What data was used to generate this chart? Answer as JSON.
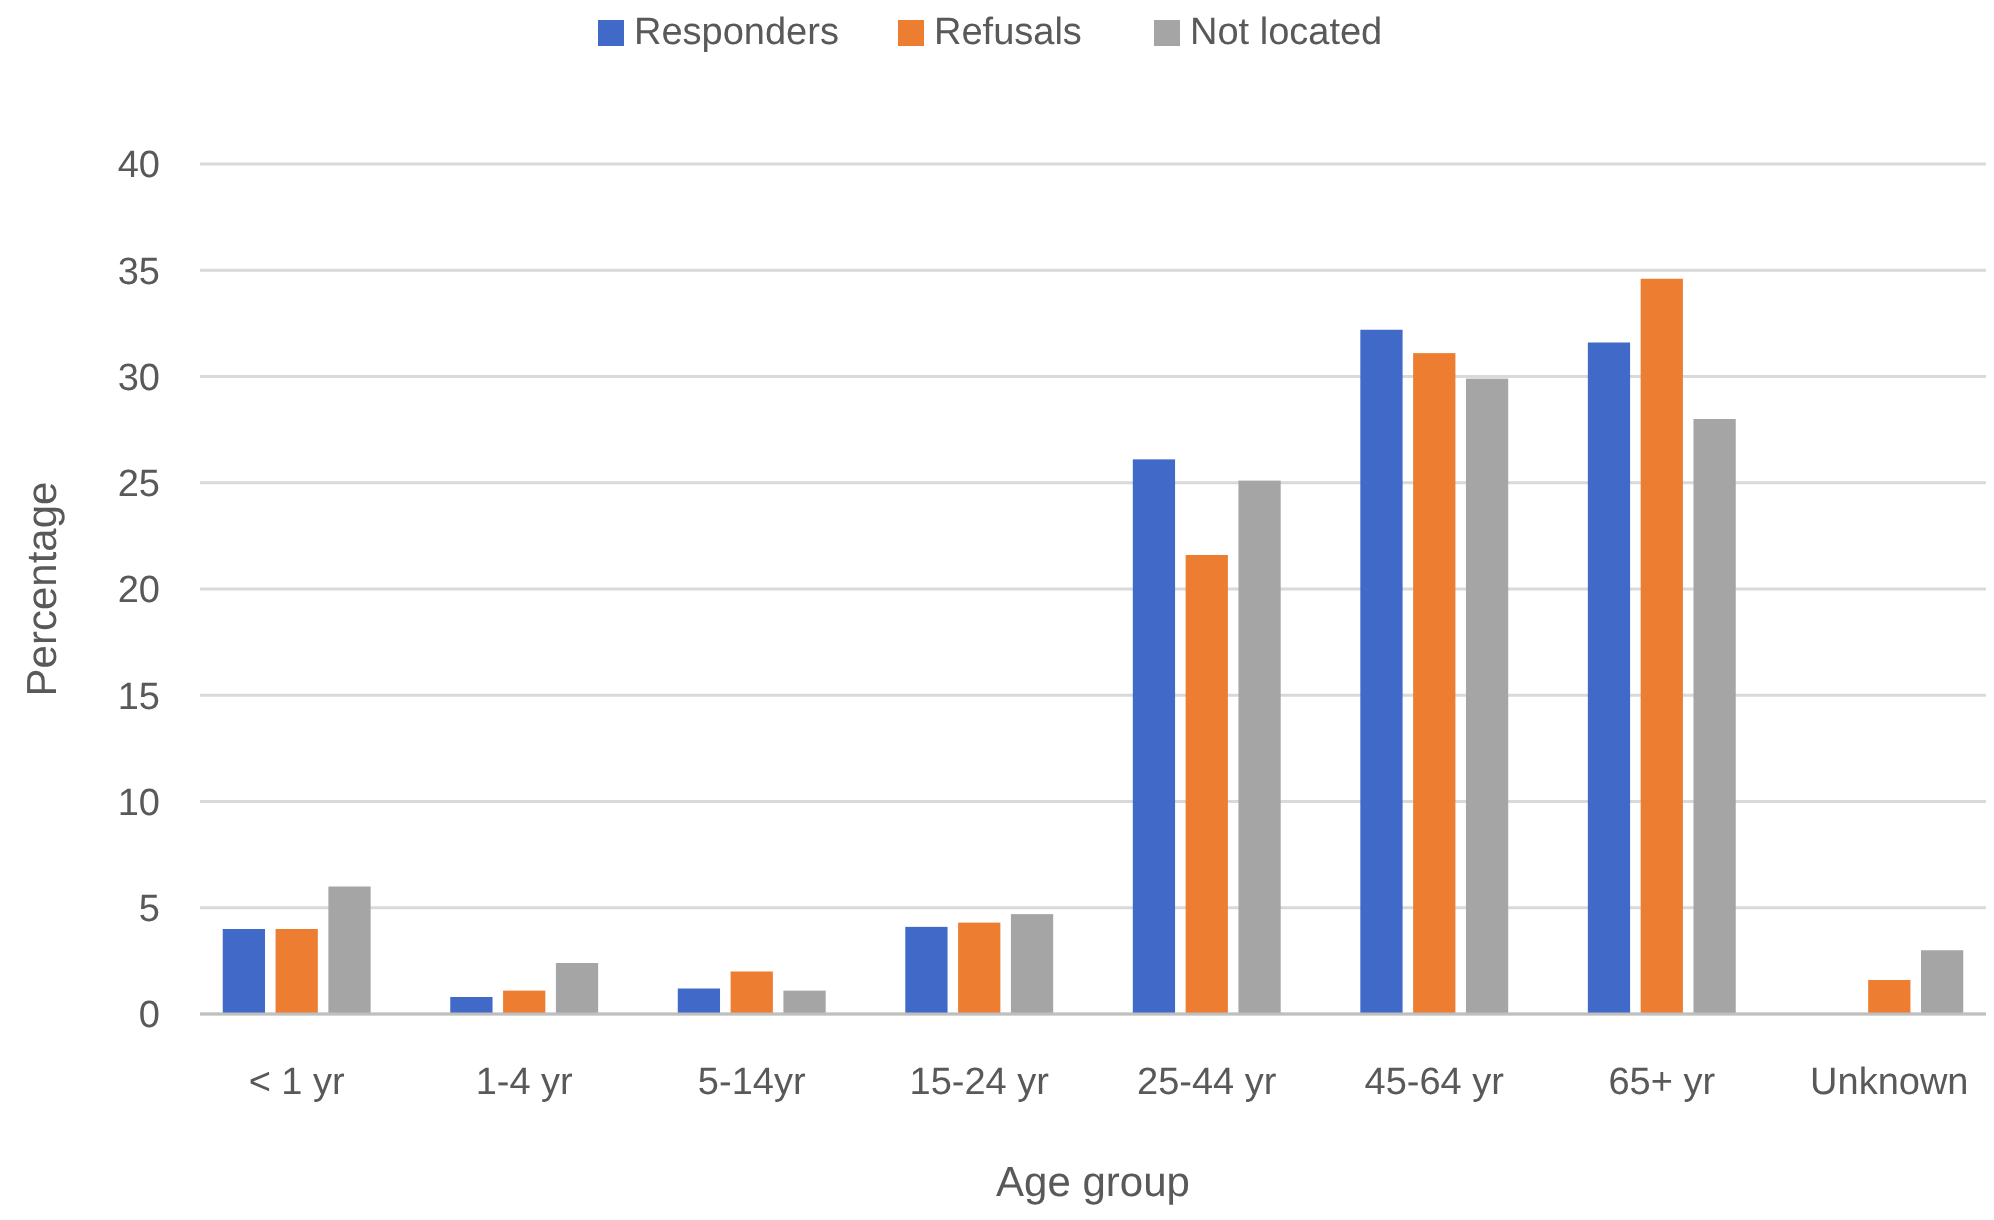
{
  "chart_data": {
    "type": "bar",
    "xlabel": "Age group",
    "ylabel": "Percentage",
    "categories": [
      "< 1 yr",
      "1-4 yr",
      "5-14yr",
      "15-24 yr",
      "25-44 yr",
      "45-64 yr",
      "65+ yr",
      "Unknown"
    ],
    "series": [
      {
        "name": "Responders",
        "color": "#4169c8",
        "values": [
          4,
          0.8,
          1.2,
          4.1,
          26.1,
          32.2,
          31.6,
          null
        ]
      },
      {
        "name": "Refusals",
        "color": "#ed7d31",
        "values": [
          4,
          1.1,
          2,
          4.3,
          21.6,
          31.1,
          34.6,
          1.6
        ]
      },
      {
        "name": "Not located",
        "color": "#a5a5a5",
        "values": [
          6,
          2.4,
          1.1,
          4.7,
          25.1,
          29.9,
          28,
          3
        ]
      }
    ],
    "ylim": [
      0,
      40
    ],
    "yticks": [
      0,
      5,
      10,
      15,
      20,
      25,
      30,
      35,
      40
    ],
    "grid": "y",
    "legend": "top"
  }
}
